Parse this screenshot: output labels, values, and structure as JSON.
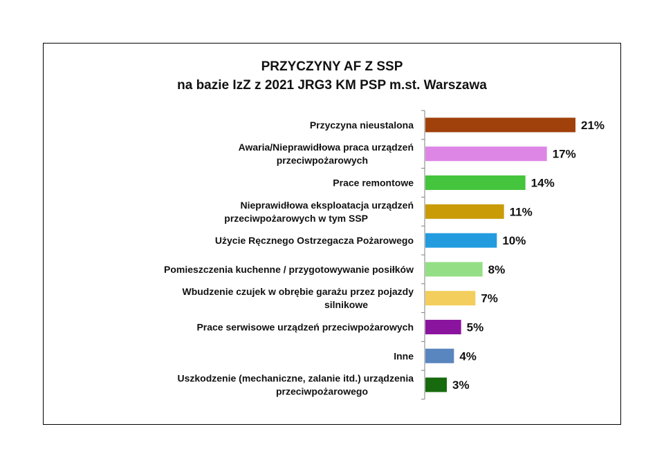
{
  "chart_data": {
    "type": "bar",
    "orientation": "horizontal",
    "title": "PRZYCZYNY AF Z SSP",
    "subtitle": "na bazie IzZ z 2021 JRG3 KM PSP m.st. Warszawa",
    "value_suffix": "%",
    "xlim": [
      0,
      21
    ],
    "categories": [
      [
        "Przyczyna nieustalona"
      ],
      [
        "Awaria/Nieprawidłowa praca urządzeń",
        "przeciwpożarowych"
      ],
      [
        "Prace remontowe"
      ],
      [
        "Nieprawidłowa eksploatacja urządzeń",
        "przeciwpożarowych w tym SSP"
      ],
      [
        "Użycie Ręcznego Ostrzegacza Pożarowego"
      ],
      [
        "Pomieszczenia kuchenne / przygotowywanie posiłków"
      ],
      [
        "Wbudzenie czujek w obrębie garażu przez pojazdy",
        "silnikowe"
      ],
      [
        "Prace serwisowe urządzeń przeciwpożarowych"
      ],
      [
        "Inne"
      ],
      [
        "Uszkodzenie (mechaniczne, zalanie itd.) urządzenia",
        "przeciwpożarowego"
      ]
    ],
    "values": [
      21,
      17,
      14,
      11,
      10,
      8,
      7,
      5,
      4,
      3
    ],
    "colors": [
      "#A0410B",
      "#DD86E6",
      "#45C43D",
      "#C99B06",
      "#229BDF",
      "#94DF86",
      "#F3CE5C",
      "#8B149E",
      "#5A86C0",
      "#176B0E"
    ]
  }
}
